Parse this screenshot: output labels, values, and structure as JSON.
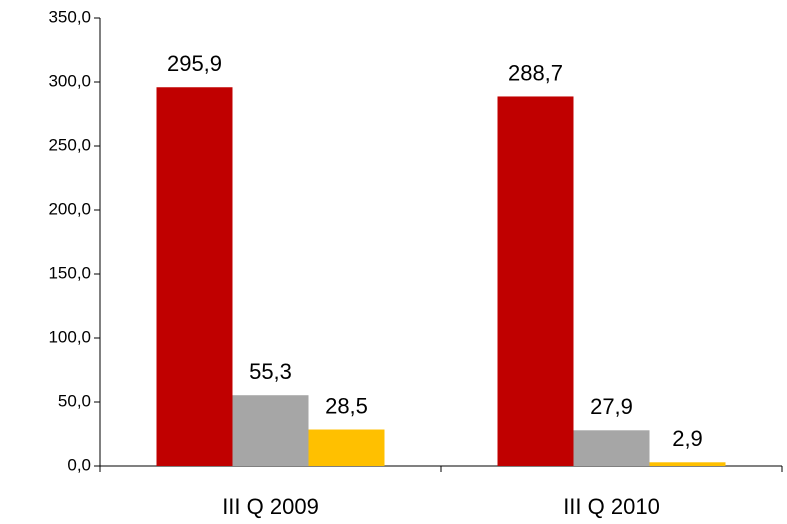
{
  "chart_data": {
    "type": "bar",
    "categories": [
      "III Q 2009",
      "III Q 2010"
    ],
    "series": [
      {
        "color": "#c00000",
        "values": [
          295.9,
          288.7
        ],
        "value_labels": [
          "295,9",
          "288,7"
        ]
      },
      {
        "color": "#a6a6a6",
        "values": [
          55.3,
          27.9
        ],
        "value_labels": [
          "55,3",
          "27,9"
        ]
      },
      {
        "color": "#ffc000",
        "values": [
          28.5,
          2.9
        ],
        "value_labels": [
          "28,5",
          "2,9"
        ]
      }
    ],
    "ylim": [
      0,
      350
    ],
    "yticks": [
      {
        "value": 0,
        "label": "0,0"
      },
      {
        "value": 50,
        "label": "50,0"
      },
      {
        "value": 100,
        "label": "100,0"
      },
      {
        "value": 150,
        "label": "150,0"
      },
      {
        "value": 200,
        "label": "200,0"
      },
      {
        "value": 250,
        "label": "250,0"
      },
      {
        "value": 300,
        "label": "300,0"
      },
      {
        "value": 350,
        "label": "350,0"
      }
    ],
    "grid": false
  }
}
